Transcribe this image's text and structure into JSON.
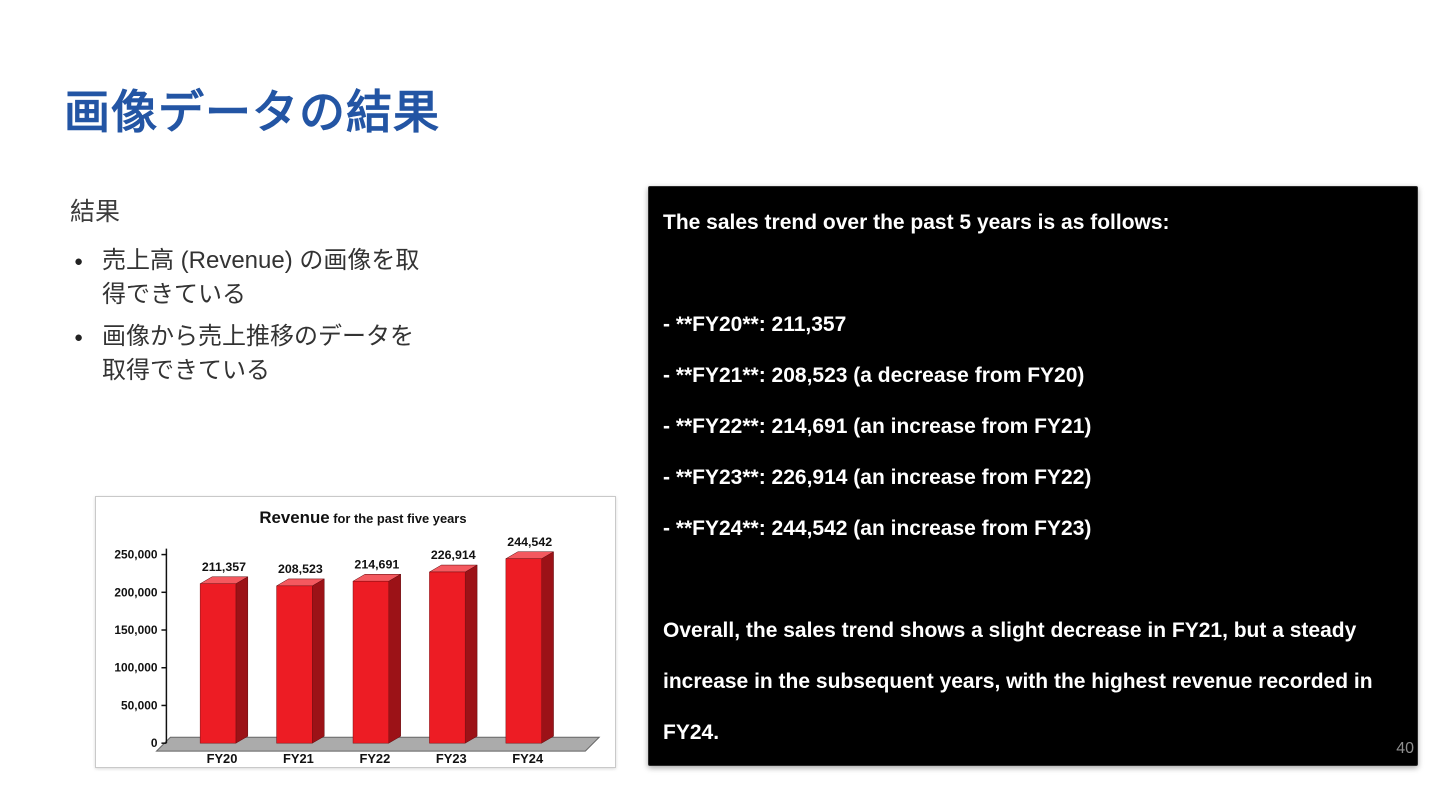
{
  "slide": {
    "title": "画像データの結果",
    "page_number": "40"
  },
  "left": {
    "heading": "結果",
    "bullets": [
      "売上高 (Revenue) の画像を取得できている",
      "画像から売上推移のデータを取得できている"
    ]
  },
  "terminal": {
    "lines": [
      "The sales trend over the past 5 years is as follows:",
      "",
      "- **FY20**: 211,357",
      "- **FY21**: 208,523 (a decrease from FY20)",
      "- **FY22**: 214,691 (an increase from FY21)",
      "- **FY23**: 226,914 (an increase from FY22)",
      "- **FY24**: 244,542 (an increase from FY23)",
      "",
      "Overall, the sales trend shows a slight decrease in FY21, but a steady increase in the subsequent years, with the highest revenue recorded in FY24."
    ]
  },
  "chart_data": {
    "type": "bar",
    "title_main": "Revenue",
    "title_rest": " for the past five years",
    "categories": [
      "FY20",
      "FY21",
      "FY22",
      "FY23",
      "FY24"
    ],
    "values": [
      211357,
      208523,
      214691,
      226914,
      244542
    ],
    "value_labels": [
      "211,357",
      "208,523",
      "214,691",
      "226,914",
      "244,542"
    ],
    "y_tick_values": [
      0,
      50000,
      100000,
      150000,
      200000,
      250000
    ],
    "y_tick_labels": [
      "0",
      "50,000",
      "100,000",
      "150,000",
      "200,000",
      "250,000"
    ],
    "ylim": [
      0,
      250000
    ],
    "xlabel": "",
    "ylabel": "",
    "grid": false,
    "legend": "none",
    "bar_front_color": "#ed1c24",
    "bar_top_color": "#f4595f",
    "bar_side_color": "#9c1217",
    "floor_color": "#ababab",
    "floor_edge_color": "#666666"
  }
}
